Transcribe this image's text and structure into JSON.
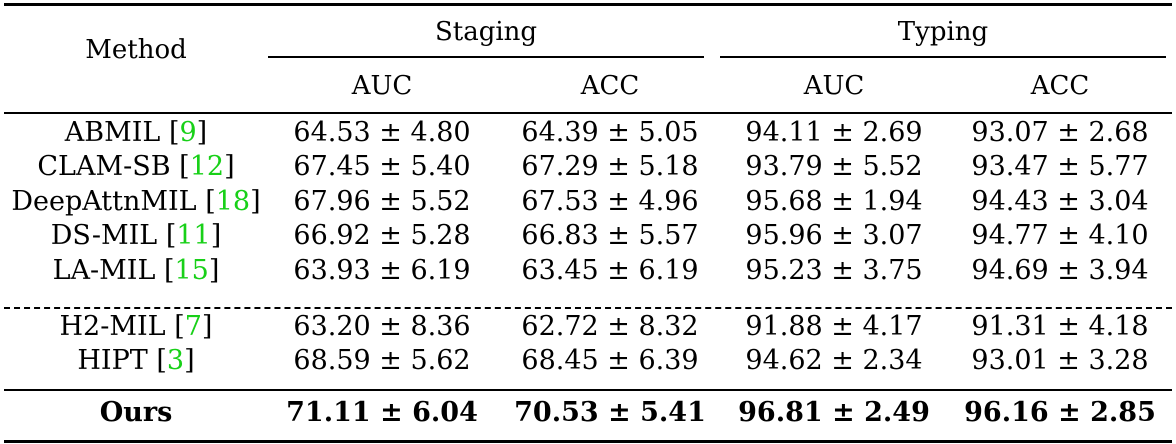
{
  "table": {
    "header": {
      "method": "Method",
      "groups": [
        {
          "label": "Staging",
          "columns": [
            "AUC",
            "ACC"
          ]
        },
        {
          "label": "Typing",
          "columns": [
            "AUC",
            "ACC"
          ]
        }
      ]
    },
    "rows": [
      {
        "method": "ABMIL",
        "ref": "9",
        "values": [
          "64.53 ± 4.80",
          "64.39 ± 5.05",
          "94.11 ± 2.69",
          "93.07 ± 2.68"
        ]
      },
      {
        "method": "CLAM-SB",
        "ref": "12",
        "values": [
          "67.45 ± 5.40",
          "67.29 ± 5.18",
          "93.79 ± 5.52",
          "93.47 ± 5.77"
        ]
      },
      {
        "method": "DeepAttnMIL",
        "ref": "18",
        "values": [
          "67.96 ± 5.52",
          "67.53 ± 4.96",
          "95.68 ± 1.94",
          "94.43 ± 3.04"
        ]
      },
      {
        "method": "DS-MIL",
        "ref": "11",
        "values": [
          "66.92 ± 5.28",
          "66.83 ± 5.57",
          "95.96 ± 3.07",
          "94.77 ± 4.10"
        ]
      },
      {
        "method": "LA-MIL",
        "ref": "15",
        "values": [
          "63.93 ± 6.19",
          "63.45 ± 6.19",
          "95.23 ± 3.75",
          "94.69 ± 3.94"
        ]
      },
      {
        "method": "H2-MIL",
        "ref": "7",
        "values": [
          "63.20 ± 8.36",
          "62.72 ± 8.32",
          "91.88 ± 4.17",
          "91.31 ± 4.18"
        ]
      },
      {
        "method": "HIPT",
        "ref": "3",
        "values": [
          "68.59 ± 5.62",
          "68.45 ± 6.39",
          "94.62 ± 2.34",
          "93.01 ± 3.28"
        ]
      }
    ],
    "ours": {
      "method": "Ours",
      "values": [
        "71.11 ± 6.04",
        "70.53 ± 5.41",
        "96.81 ± 2.49",
        "96.16 ± 2.85"
      ]
    }
  }
}
